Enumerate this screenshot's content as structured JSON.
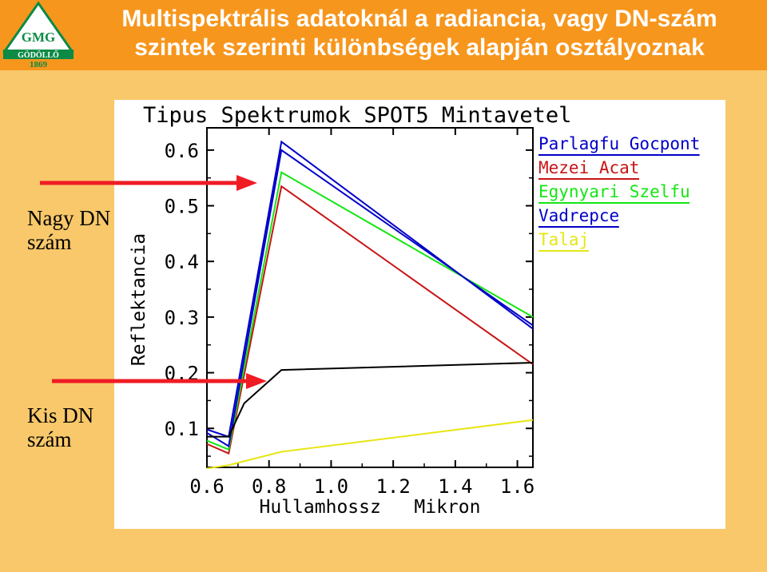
{
  "header": {
    "title_line1": "Multispektrális adatoknál a radiancia, vagy DN-szám",
    "title_line2": "szintek szerinti különbségek alapján osztályoznak"
  },
  "logo": {
    "name": "GÖDÖLLŐ",
    "year": "1869",
    "monogram": "GMG"
  },
  "annotations": {
    "high_label_1": "Nagy DN",
    "high_label_2": "szám",
    "low_label_1": "Kis DN",
    "low_label_2": "szám"
  },
  "colors": {
    "header_bg": "#f7961c",
    "page_bg": "#f8c86a",
    "arrow": "#ef1c24",
    "logo_green": "#0c8a46"
  },
  "chart_data": {
    "type": "line",
    "title": "Tipus Spektrumok SPOT5 Mintavetel",
    "xlabel": "Hullamhossz   Mikron",
    "ylabel": "Reflektancia",
    "xlim": [
      0.6,
      1.65
    ],
    "ylim": [
      0.03,
      0.64
    ],
    "xticks": [
      0.6,
      0.8,
      1.0,
      1.2,
      1.4,
      1.6
    ],
    "xtick_labels": [
      "0.6",
      "0.8",
      "1.0",
      "1.2",
      "1.4",
      "1.6"
    ],
    "yticks": [
      0.1,
      0.2,
      0.3,
      0.4,
      0.5,
      0.6
    ],
    "ytick_labels": [
      "0.1",
      "0.2",
      "0.3",
      "0.4",
      "0.5",
      "0.6"
    ],
    "grid": false,
    "legend": "top-right",
    "series": [
      {
        "name": "Parlagfu Gocpont",
        "color": "#0000c8",
        "x": [
          0.6,
          0.67,
          0.84,
          1.65
        ],
        "y": [
          0.098,
          0.085,
          0.615,
          0.279
        ]
      },
      {
        "name": "Mezei Acat",
        "color": "#c81414",
        "x": [
          0.6,
          0.67,
          0.84,
          1.65
        ],
        "y": [
          0.072,
          0.055,
          0.535,
          0.215
        ]
      },
      {
        "name": "Egynyari Szelfu",
        "color": "#14e614",
        "x": [
          0.6,
          0.67,
          0.84,
          1.65
        ],
        "y": [
          0.078,
          0.062,
          0.56,
          0.3
        ]
      },
      {
        "name": "Vadrepce",
        "color": "#0000c8",
        "x": [
          0.6,
          0.67,
          0.84,
          1.65
        ],
        "y": [
          0.092,
          0.068,
          0.6,
          0.285
        ]
      },
      {
        "name": "Talaj",
        "color": "#e6e614",
        "x": [
          0.6,
          0.67,
          0.84,
          1.65
        ],
        "y": [
          0.028,
          0.034,
          0.058,
          0.115
        ]
      },
      {
        "name": "",
        "color": "#000000",
        "x": [
          0.6,
          0.67,
          0.72,
          0.84,
          1.65
        ],
        "y": [
          0.085,
          0.085,
          0.145,
          0.205,
          0.218
        ]
      }
    ]
  }
}
